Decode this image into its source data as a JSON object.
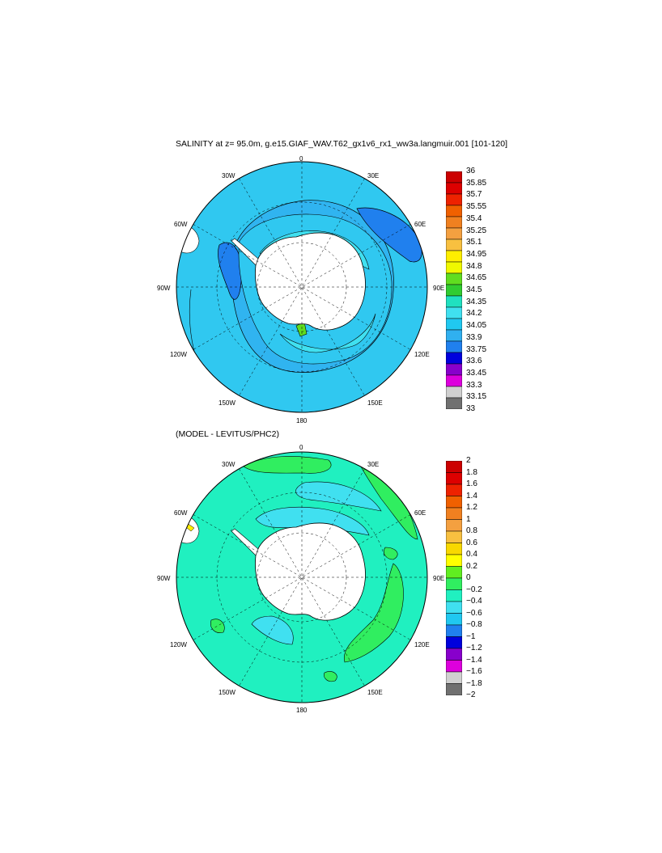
{
  "top_map": {
    "title": "SALINITY at z=  95.0m, g.e15.GIAF_WAV.T62_gx1v6_rx1_ww3a.langmuir.001 [101-120]",
    "lon_labels": {
      "l0": "0",
      "l30e": "30E",
      "l60e": "60E",
      "l90e": "90E",
      "l120e": "120E",
      "l150e": "150E",
      "l180": "180",
      "l150w": "150W",
      "l120w": "120W",
      "l90w": "90W",
      "l60w": "60W",
      "l30w": "30W"
    },
    "colorbar": {
      "labels": [
        "36",
        "35.85",
        "35.7",
        "35.55",
        "35.4",
        "35.25",
        "35.1",
        "34.95",
        "34.8",
        "34.65",
        "34.5",
        "34.35",
        "34.2",
        "34.05",
        "33.9",
        "33.75",
        "33.6",
        "33.45",
        "33.3",
        "33.15",
        "33"
      ],
      "colors": [
        "#cc0000",
        "#dd0000",
        "#ee2200",
        "#f06000",
        "#f08020",
        "#f4a040",
        "#f8c040",
        "#ffee00",
        "#f0f800",
        "#60dd20",
        "#30cc30",
        "#20e0c0",
        "#40e0f0",
        "#20c8f0",
        "#30b0f0",
        "#2080ee",
        "#0000dd",
        "#8800cc",
        "#dd00dd",
        "#d0d0d0",
        "#707070"
      ]
    }
  },
  "bottom_map": {
    "title": "(MODEL - LEVITUS/PHC2)",
    "lon_labels": {
      "l0": "0",
      "l30e": "30E",
      "l60e": "60E",
      "l90e": "90E",
      "l120e": "120E",
      "l150e": "150E",
      "l180": "180",
      "l150w": "150W",
      "l120w": "120W",
      "l90w": "90W",
      "l60w": "60W",
      "l30w": "30W"
    },
    "colorbar": {
      "labels": [
        "2",
        "1.8",
        "1.6",
        "1.4",
        "1.2",
        "1",
        "0.8",
        "0.6",
        "0.4",
        "0.2",
        "0",
        "−0.2",
        "−0.4",
        "−0.6",
        "−0.8",
        "−1",
        "−1.2",
        "−1.4",
        "−1.6",
        "−1.8",
        "−2"
      ],
      "colors": [
        "#cc0000",
        "#dd0000",
        "#ee2200",
        "#f06000",
        "#f08020",
        "#f4a040",
        "#f8c040",
        "#f8d800",
        "#ffff00",
        "#60ee20",
        "#30ee60",
        "#20f0c0",
        "#40e0f0",
        "#20c8f0",
        "#2080ee",
        "#0000dd",
        "#8800cc",
        "#dd00dd",
        "#d0d0d0",
        "#707070"
      ]
    }
  }
}
